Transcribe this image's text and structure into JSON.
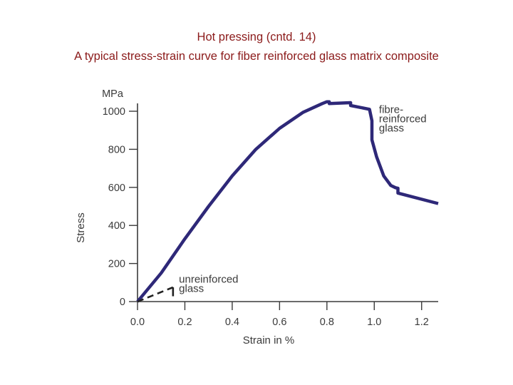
{
  "slide": {
    "title_line_1": "Hot pressing (cntd. 14)",
    "title_line_2": "A typical stress-strain curve for fiber reinforced glass matrix composite"
  },
  "colors": {
    "title": "#8b1a1a",
    "curve": "#2e2878",
    "axis": "#3a3a3a"
  },
  "chart_data": {
    "type": "line",
    "title": "",
    "xlabel": "Strain in %",
    "ylabel": "Stress",
    "y_unit_label": "MPa",
    "xlim": [
      0.0,
      1.27
    ],
    "ylim": [
      0,
      1060
    ],
    "x_ticks": [
      0.0,
      0.2,
      0.4,
      0.6,
      0.8,
      1.0,
      1.2
    ],
    "x_tick_labels": [
      "0.0",
      "0.2",
      "0.4",
      "0.6",
      "0.8",
      "1.0",
      "1.2"
    ],
    "y_ticks": [
      0,
      200,
      400,
      600,
      800,
      1000
    ],
    "y_tick_labels": [
      "0",
      "200",
      "400",
      "600",
      "800",
      "1000"
    ],
    "grid": false,
    "series": [
      {
        "name": "fibre-reinforced glass",
        "label": "fibre-\nreinforced\nglass",
        "style": "solid",
        "x": [
          0.0,
          0.1,
          0.2,
          0.3,
          0.4,
          0.5,
          0.6,
          0.7,
          0.78,
          0.8,
          0.81,
          0.81,
          0.9,
          0.9,
          0.98,
          0.99,
          0.99,
          1.01,
          1.04,
          1.07,
          1.09,
          1.1,
          1.1,
          1.27
        ],
        "y": [
          0,
          150,
          330,
          500,
          660,
          800,
          910,
          995,
          1040,
          1050,
          1050,
          1040,
          1045,
          1030,
          1010,
          950,
          850,
          760,
          660,
          610,
          598,
          595,
          570,
          515
        ]
      },
      {
        "name": "unreinforced glass",
        "label": "unreinforced\nglass",
        "style": "dashed",
        "x": [
          0.0,
          0.15
        ],
        "y": [
          0,
          75
        ],
        "fracture_drop": [
          75,
          28
        ]
      }
    ]
  }
}
